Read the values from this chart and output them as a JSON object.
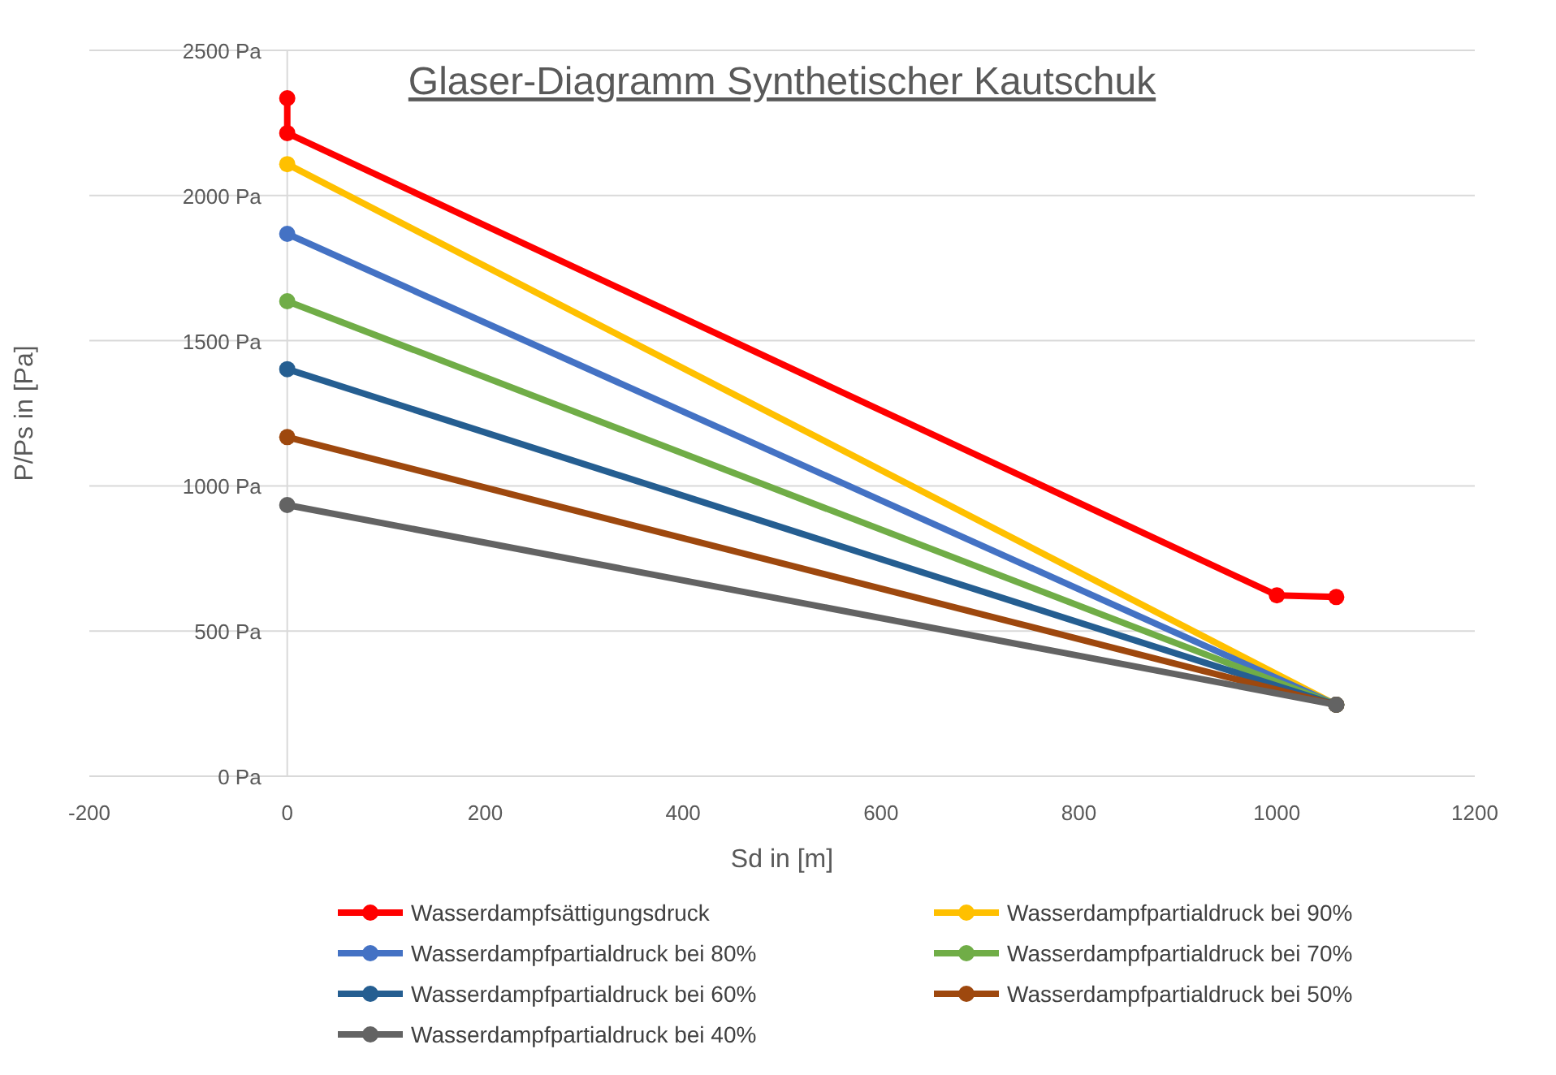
{
  "chart_data": {
    "type": "line",
    "title": "Glaser-Diagramm Synthetischer Kautschuk",
    "xlabel": "Sd in [m]",
    "ylabel": "P/Ps in [Pa]",
    "xlim": [
      -200,
      1200
    ],
    "xticks": [
      -200,
      0,
      200,
      400,
      600,
      800,
      1000,
      1200
    ],
    "ylim": [
      0,
      2500
    ],
    "yticks": [
      {
        "value": 0,
        "label": "0 Pa"
      },
      {
        "value": 500,
        "label": "500 Pa"
      },
      {
        "value": 1000,
        "label": "1000 Pa"
      },
      {
        "value": 1500,
        "label": "1500 Pa"
      },
      {
        "value": 2000,
        "label": "2000 Pa"
      },
      {
        "value": 2500,
        "label": "2500 Pa"
      }
    ],
    "grid": "y",
    "legend": "bottom",
    "marker": "circle",
    "line_style": "solid",
    "series": [
      {
        "name": "Wasserdampfsättigungsdruck",
        "color": "#ff0000",
        "x": [
          0,
          0,
          1000,
          1060
        ],
        "values": [
          2335,
          2215,
          623,
          617
        ]
      },
      {
        "name": "Wasserdampfpartialdruck bei 90%",
        "color": "#ffc000",
        "x": [
          0,
          1060
        ],
        "values": [
          2108,
          246
        ]
      },
      {
        "name": "Wasserdampfpartialdruck bei 80%",
        "color": "#4472c4",
        "x": [
          0,
          1060
        ],
        "values": [
          1868,
          246
        ]
      },
      {
        "name": "Wasserdampfpartialdruck bei 70%",
        "color": "#70ad47",
        "x": [
          0,
          1060
        ],
        "values": [
          1636,
          246
        ]
      },
      {
        "name": "Wasserdampfpartialdruck bei 60%",
        "color": "#255e91",
        "x": [
          0,
          1060
        ],
        "values": [
          1402,
          246
        ]
      },
      {
        "name": "Wasserdampfpartialdruck bei 50%",
        "color": "#9e480e",
        "x": [
          0,
          1060
        ],
        "values": [
          1168,
          246
        ]
      },
      {
        "name": "Wasserdampfpartialdruck bei 40%",
        "color": "#636363",
        "x": [
          0,
          1060
        ],
        "values": [
          934,
          246
        ]
      }
    ]
  }
}
